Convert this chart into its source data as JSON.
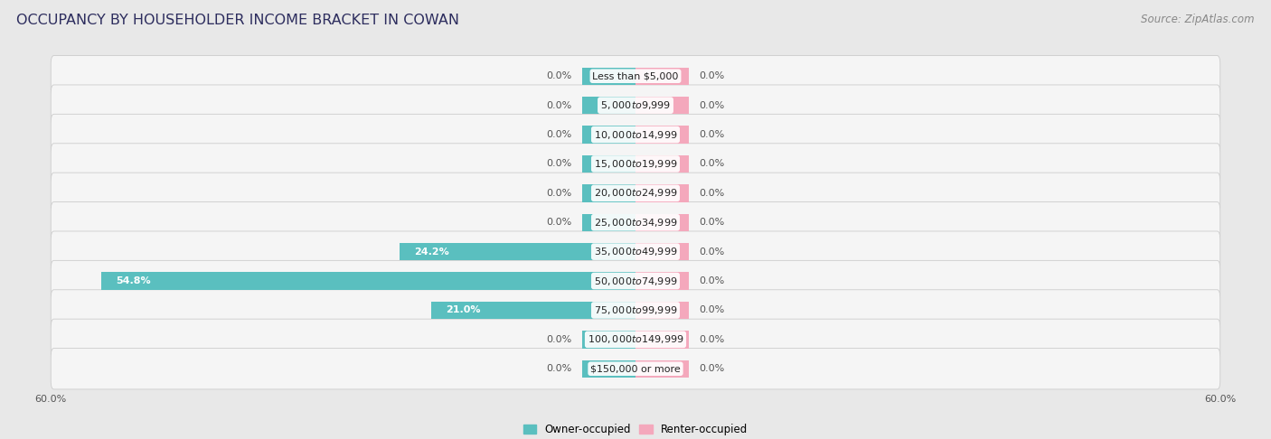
{
  "title": "OCCUPANCY BY HOUSEHOLDER INCOME BRACKET IN COWAN",
  "source": "Source: ZipAtlas.com",
  "categories": [
    "Less than $5,000",
    "$5,000 to $9,999",
    "$10,000 to $14,999",
    "$15,000 to $19,999",
    "$20,000 to $24,999",
    "$25,000 to $34,999",
    "$35,000 to $49,999",
    "$50,000 to $74,999",
    "$75,000 to $99,999",
    "$100,000 to $149,999",
    "$150,000 or more"
  ],
  "owner_values": [
    0.0,
    0.0,
    0.0,
    0.0,
    0.0,
    0.0,
    24.2,
    54.8,
    21.0,
    0.0,
    0.0
  ],
  "renter_values": [
    0.0,
    0.0,
    0.0,
    0.0,
    0.0,
    0.0,
    0.0,
    0.0,
    0.0,
    0.0,
    0.0
  ],
  "owner_color": "#5abfbf",
  "renter_color": "#f4a8bc",
  "xlim": 60.0,
  "stub_size": 5.5,
  "background_color": "#e8e8e8",
  "row_bg_color": "#f5f5f5",
  "row_edge_color": "#cccccc",
  "title_color": "#2d2d5e",
  "source_color": "#888888",
  "label_color_dark": "#555555",
  "label_color_light": "#ffffff",
  "title_fontsize": 11.5,
  "source_fontsize": 8.5,
  "label_fontsize": 8.0,
  "category_fontsize": 8.0,
  "axis_label_fontsize": 8.0,
  "legend_fontsize": 8.5
}
